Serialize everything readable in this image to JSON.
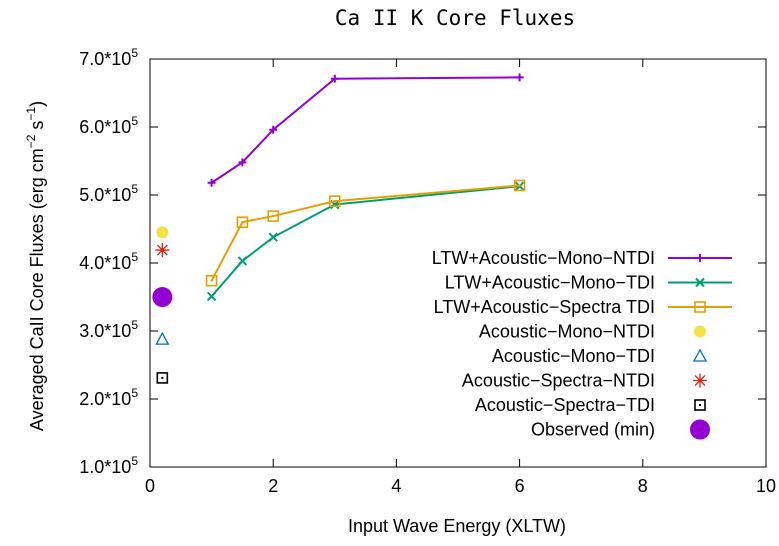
{
  "chart_data": {
    "type": "line",
    "title": "Ca II K Core Fluxes",
    "xlabel": "Input Wave Energy (XLTW)",
    "ylabel_main": "Averaged CaII Core Fluxes (erg cm",
    "ylabel_sup1": "−2",
    "ylabel_mid": " s",
    "ylabel_sup2": "−1",
    "ylabel_end": ")",
    "xlim": [
      0,
      10
    ],
    "ylim": [
      100000,
      700000
    ],
    "xticks": [
      0,
      2,
      4,
      6,
      8,
      10
    ],
    "xtick_labels": [
      "0",
      "2",
      "4",
      "6",
      "8",
      "10"
    ],
    "yticks": [
      100000,
      200000,
      300000,
      400000,
      500000,
      600000,
      700000
    ],
    "ytick_bases": [
      "1.0*10",
      "2.0*10",
      "3.0*10",
      "4.0*10",
      "5.0*10",
      "6.0*10",
      "7.0*10"
    ],
    "ytick_exp": "5",
    "legend_position": "right, middle",
    "series": [
      {
        "name": "LTW+Acoustic−Mono−NTDI",
        "kind": "line",
        "marker": "plus",
        "color": "#9400d3",
        "x": [
          1,
          1.5,
          2,
          3,
          6
        ],
        "y": [
          518000,
          548000,
          596000,
          671000,
          673000
        ]
      },
      {
        "name": "LTW+Acoustic−Mono−TDI",
        "kind": "line",
        "marker": "cross",
        "color": "#009e73",
        "x": [
          1,
          1.5,
          2,
          3,
          6
        ],
        "y": [
          351000,
          403000,
          438000,
          486000,
          513000
        ]
      },
      {
        "name": "LTW+Acoustic−Spectra TDI",
        "kind": "line",
        "marker": "square-dot",
        "color": "#e69f00",
        "x": [
          1,
          1.5,
          2,
          3,
          6
        ],
        "y": [
          374000,
          460000,
          469000,
          491000,
          514000
        ]
      },
      {
        "name": "Acoustic−Mono−NTDI",
        "kind": "point",
        "marker": "filled-circle",
        "color": "#f0e442",
        "x": [
          0.2
        ],
        "y": [
          445000
        ]
      },
      {
        "name": "Acoustic−Mono−TDI",
        "kind": "point",
        "marker": "triangle",
        "color": "#0072b2",
        "x": [
          0.2
        ],
        "y": [
          288000
        ]
      },
      {
        "name": "Acoustic−Spectra−NTDI",
        "kind": "point",
        "marker": "star",
        "color": "#e51e10",
        "x": [
          0.2
        ],
        "y": [
          419000
        ]
      },
      {
        "name": "Acoustic−Spectra−TDI",
        "kind": "point",
        "marker": "square-dot",
        "color": "#000000",
        "x": [
          0.2
        ],
        "y": [
          231000
        ]
      },
      {
        "name": "Observed (min)",
        "kind": "point",
        "marker": "big-filled-circle",
        "color": "#9400d3",
        "x": [
          0.2
        ],
        "y": [
          350000
        ]
      }
    ]
  }
}
